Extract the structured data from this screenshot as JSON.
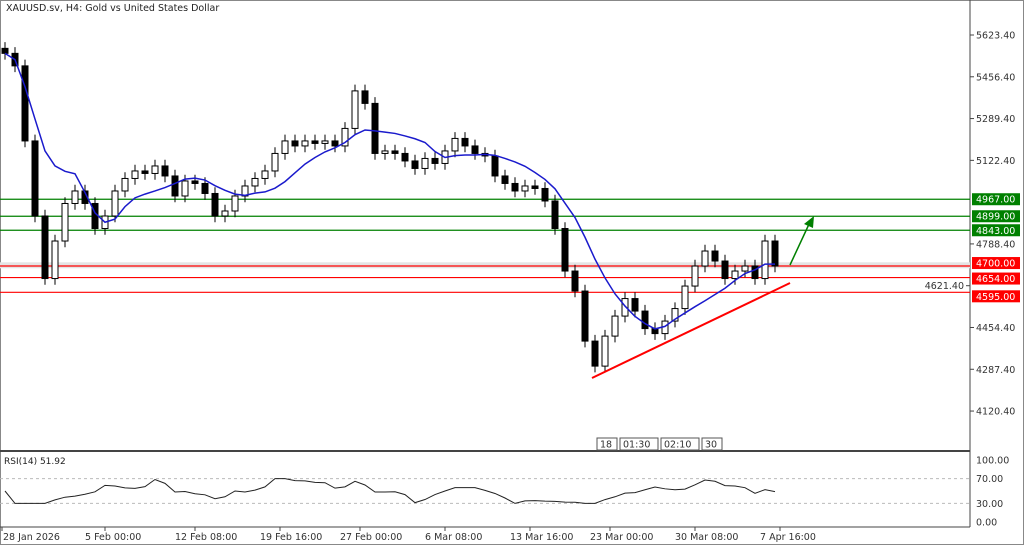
{
  "header": {
    "title": "XAUUSD.sv, H4:  Gold vs United States Dollar"
  },
  "rsi": {
    "label": "RSI(14) 51.92",
    "levels": [
      "100.00",
      "70.00",
      "30.00",
      "0.00"
    ]
  },
  "chart_data": {
    "type": "candlestick",
    "price_ticks": [
      "5623.40",
      "5456.40",
      "5289.40",
      "5122.40",
      "4788.40",
      "4454.40",
      "4287.40",
      "4120.40"
    ],
    "x_ticks": [
      "28 Jan 2026",
      "5 Feb 00:00",
      "12 Feb 08:00",
      "19 Feb 16:00",
      "27 Feb 00:00",
      "6 Mar 08:00",
      "13 Mar 16:00",
      "23 Mar 00:00",
      "30 Mar 08:00",
      "7 Apr 16:00"
    ],
    "closes": [
      5550,
      5500,
      5200,
      4900,
      4650,
      4800,
      4950,
      5000,
      4950,
      4850,
      4900,
      5000,
      5050,
      5080,
      5070,
      5100,
      5060,
      4980,
      5040,
      5030,
      4990,
      4900,
      4920,
      4980,
      5020,
      5050,
      5080,
      5150,
      5200,
      5180,
      5200,
      5190,
      5200,
      5180,
      5250,
      5400,
      5350,
      5150,
      5160,
      5150,
      5120,
      5090,
      5130,
      5110,
      5160,
      5210,
      5180,
      5150,
      5140,
      5060,
      5030,
      5000,
      5020,
      5010,
      4960,
      4850,
      4680,
      4600,
      4400,
      4300,
      4420,
      4500,
      4570,
      4520,
      4450,
      4430,
      4480,
      4530,
      4620,
      4700,
      4760,
      4720,
      4650,
      4680,
      4700,
      4650,
      4800,
      4700
    ],
    "support_levels": [
      {
        "value": 4700,
        "label": "4700.00"
      },
      {
        "value": 4654,
        "label": "4654.00"
      },
      {
        "value": 4595,
        "label": "4595.00"
      }
    ],
    "resistance_levels": [
      {
        "value": 4967,
        "label": "4967.00"
      },
      {
        "value": 4899,
        "label": "4899.00"
      },
      {
        "value": 4843,
        "label": "4843.00"
      }
    ],
    "hidden_tick": "4621.40",
    "time_markers": [
      "18",
      "01:30",
      "02:10",
      "30"
    ],
    "colors": {
      "ma": "#1a1acc",
      "support": "#ff0000",
      "resistance": "#008000",
      "candle": "#000000"
    }
  }
}
